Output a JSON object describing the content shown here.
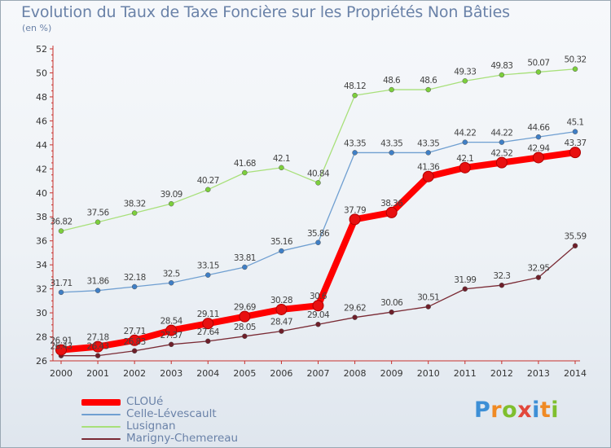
{
  "title": "Evolution du Taux de Taxe Foncière sur les Propriétés Non Bâties",
  "subtitle": "(en %)",
  "brand": {
    "letters": [
      "P",
      "r",
      "o",
      "x",
      "i",
      "t",
      "i"
    ],
    "colors": [
      "#3d8fd6",
      "#f08a24",
      "#7fbf2e",
      "#e2473b",
      "#3d8fd6",
      "#f08a24",
      "#7fbf2e"
    ]
  },
  "chart_data": {
    "type": "line",
    "title": "Evolution du Taux de Taxe Foncière sur les Propriétés Non Bâties",
    "ylabel": "(en %)",
    "xlabel": "",
    "x": [
      "2000",
      "2001",
      "2002",
      "2003",
      "2004",
      "2005",
      "2006",
      "2007",
      "2008",
      "2009",
      "2010",
      "2011",
      "2012",
      "2013",
      "2014"
    ],
    "ylim": [
      26,
      52
    ],
    "yticks": [
      "26",
      "28",
      "30",
      "32",
      "34",
      "36",
      "38",
      "40",
      "42",
      "44",
      "46",
      "48",
      "50",
      "52"
    ],
    "grid": false,
    "legend": "bottom-left",
    "series": [
      {
        "name": "CLOUé",
        "color": "#ff0000",
        "marker_color": "#e81010",
        "emphasized": true,
        "values": [
          26.91,
          27.18,
          27.71,
          28.54,
          29.11,
          29.69,
          30.28,
          30.6,
          37.79,
          38.36,
          41.36,
          42.1,
          42.52,
          42.94,
          43.37
        ],
        "labels": [
          "26.91",
          "27.18",
          "27.71",
          "28.54",
          "29.11",
          "29.69",
          "30.28",
          "30.6",
          "37.79",
          "38.36",
          "41.36",
          "42.1",
          "42.52",
          "42.94",
          "43.37"
        ]
      },
      {
        "name": "Celle-Lévescault",
        "color": "#6f9fd1",
        "marker_color": "#3f7fc6",
        "values": [
          31.71,
          31.86,
          32.18,
          32.5,
          33.15,
          33.81,
          35.16,
          35.86,
          43.35,
          43.35,
          43.35,
          44.22,
          44.22,
          44.66,
          45.1
        ],
        "labels": [
          "31.71",
          "31.86",
          "32.18",
          "32.5",
          "33.15",
          "33.81",
          "35.16",
          "35.86",
          "43.35",
          "43.35",
          "43.35",
          "44.22",
          "44.22",
          "44.66",
          "45.1"
        ]
      },
      {
        "name": "Lusignan",
        "color": "#a8e07a",
        "marker_color": "#7ccf3c",
        "values": [
          36.82,
          37.56,
          38.32,
          39.09,
          40.27,
          41.68,
          42.1,
          40.84,
          48.12,
          48.6,
          48.6,
          49.33,
          49.83,
          50.07,
          50.32
        ],
        "labels": [
          "36.82",
          "37.56",
          "38.32",
          "39.09",
          "40.27",
          "41.68",
          "42.1",
          "40.84",
          "48.12",
          "48.6",
          "48.6",
          "49.33",
          "49.83",
          "50.07",
          "50.32"
        ]
      },
      {
        "name": "Marigny-Chemereau",
        "color": "#7a2a34",
        "marker_color": "#6e1f2a",
        "values": [
          26.43,
          26.43,
          26.83,
          27.37,
          27.64,
          28.05,
          28.47,
          29.04,
          29.62,
          30.06,
          30.51,
          31.99,
          32.3,
          32.95,
          35.59
        ],
        "labels": [
          "26.43",
          "26.43",
          "26.83",
          "27.37",
          "27.64",
          "28.05",
          "28.47",
          "29.04",
          "29.62",
          "30.06",
          "30.51",
          "31.99",
          "32.3",
          "32.95",
          "35.59"
        ]
      }
    ]
  }
}
